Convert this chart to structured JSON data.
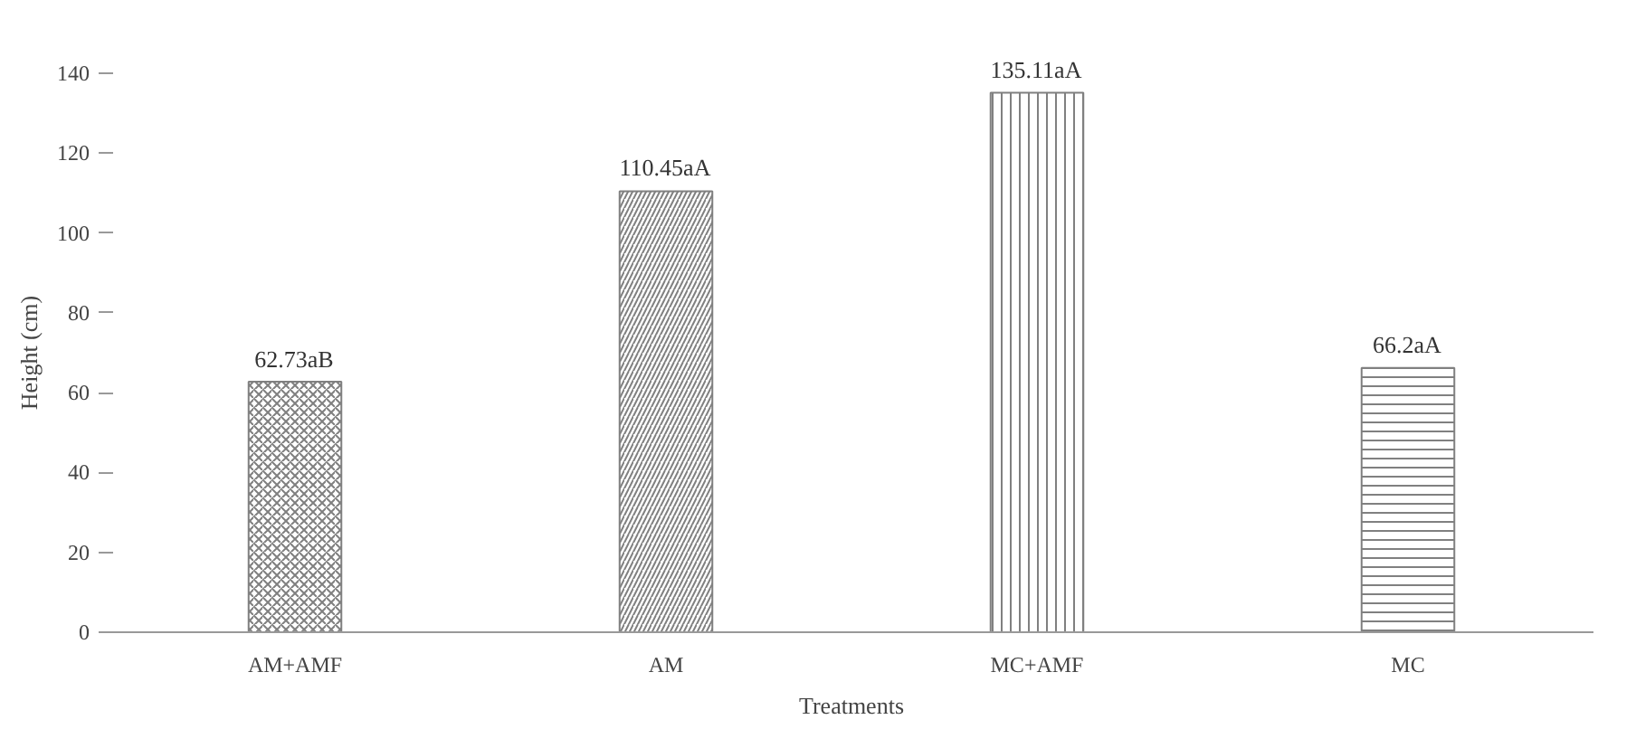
{
  "chart_data": {
    "type": "bar",
    "xlabel": "Treatments",
    "ylabel": "Height (cm)",
    "categories": [
      "AM+AMF",
      "AM",
      "MC+AMF",
      "MC"
    ],
    "values": [
      62.73,
      110.45,
      135.11,
      66.2
    ],
    "value_labels": [
      "62.73aB",
      "110.45aA",
      "135.11aA",
      "66.2aA"
    ],
    "colors": [
      "#808080",
      "#808080",
      "#808080",
      "#808080"
    ],
    "ylim": [
      0,
      140
    ],
    "yticks": [
      0,
      20,
      40,
      60,
      80,
      100,
      120,
      140
    ],
    "grid": false
  }
}
